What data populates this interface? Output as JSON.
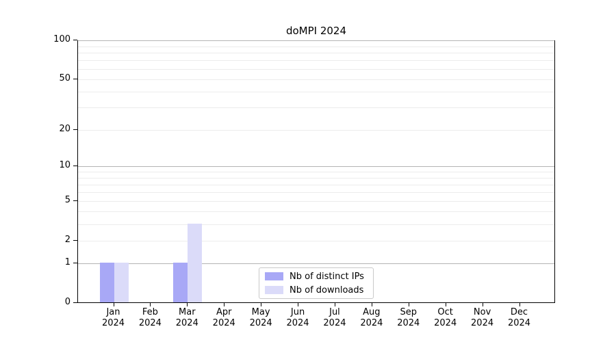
{
  "title": "doMPI 2024",
  "colors": {
    "distinct_ips_bar": "#a8a8f6",
    "downloads_bar": "#dbdbf9",
    "grid_major": "#b4b4b4",
    "grid_minor": "#ececec",
    "axis": "#000000",
    "legend_border": "#c9c9c9",
    "background": "#ffffff"
  },
  "chart_data": {
    "type": "bar",
    "title": "doMPI 2024",
    "scale": "log1p",
    "categories": [
      "Jan 2024",
      "Feb 2024",
      "Mar 2024",
      "Apr 2024",
      "May 2024",
      "Jun 2024",
      "Jul 2024",
      "Aug 2024",
      "Sep 2024",
      "Oct 2024",
      "Nov 2024",
      "Dec 2024"
    ],
    "series": [
      {
        "name": "Nb of distinct IPs",
        "color": "#a8a8f6",
        "values": [
          1,
          0,
          1,
          0,
          0,
          0,
          0,
          0,
          0,
          0,
          0,
          0
        ]
      },
      {
        "name": "Nb of downloads",
        "color": "#dbdbf9",
        "values": [
          1,
          0,
          3,
          0,
          0,
          0,
          0,
          0,
          0,
          0,
          0,
          0
        ]
      }
    ],
    "xlabel": "",
    "ylabel": "",
    "ylim": [
      0,
      100
    ],
    "yticks": [
      0,
      1,
      2,
      5,
      10,
      20,
      50,
      100
    ],
    "major_gridlines": [
      1,
      10,
      100
    ],
    "minor_gridlines": [
      2,
      3,
      4,
      5,
      6,
      7,
      8,
      9,
      20,
      30,
      40,
      50,
      60,
      70,
      80,
      90
    ],
    "grid": "on",
    "legend_position": "lower center"
  }
}
